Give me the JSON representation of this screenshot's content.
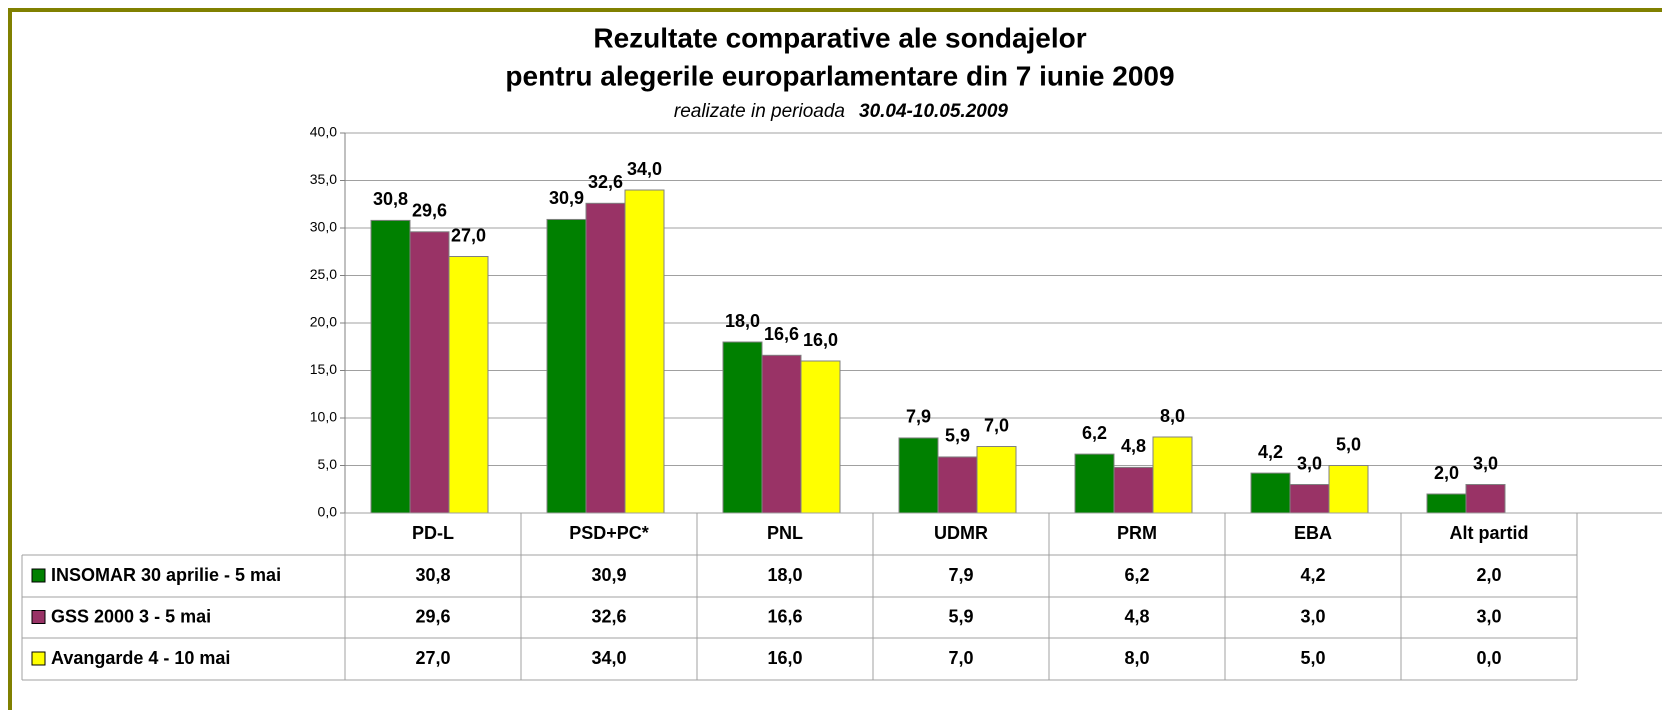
{
  "chart_data": {
    "type": "bar",
    "title": "Rezultate comparative ale sondajelor",
    "title_line2": "pentru alegerile europarlamentare din 7 iunie 2009",
    "subtitle": "realizate in perioada",
    "subtitle_date": "30.04-10.05.2009",
    "categories": [
      "PD-L",
      "PSD+PC*",
      "PNL",
      "UDMR",
      "PRM",
      "EBA",
      "Alt partid"
    ],
    "series": [
      {
        "name": "INSOMAR 30 aprilie - 5 mai",
        "color": "#008000",
        "values": [
          30.8,
          30.9,
          18.0,
          7.9,
          6.2,
          4.2,
          2.0
        ],
        "value_labels": [
          "30,8",
          "30,9",
          "18,0",
          "7,9",
          "6,2",
          "4,2",
          "2,0"
        ]
      },
      {
        "name": "GSS 2000 3 - 5 mai",
        "color": "#993366",
        "values": [
          29.6,
          32.6,
          16.6,
          5.9,
          4.8,
          3.0,
          3.0
        ],
        "value_labels": [
          "29,6",
          "32,6",
          "16,6",
          "5,9",
          "4,8",
          "3,0",
          "3,0"
        ]
      },
      {
        "name": "Avangarde 4 - 10 mai",
        "color": "#ffff00",
        "values": [
          27.0,
          34.0,
          16.0,
          7.0,
          8.0,
          5.0,
          0.0
        ],
        "value_labels": [
          "27,0",
          "34,0",
          "16,0",
          "7,0",
          "8,0",
          "5,0",
          "0,0"
        ]
      }
    ],
    "ylim": [
      0,
      40
    ],
    "yticks": [
      {
        "value": 0,
        "label": "0,0"
      },
      {
        "value": 5,
        "label": "5,0"
      },
      {
        "value": 10,
        "label": "10,0"
      },
      {
        "value": 15,
        "label": "15,0"
      },
      {
        "value": 20,
        "label": "20,0"
      },
      {
        "value": 25,
        "label": "25,0"
      },
      {
        "value": 30,
        "label": "30,0"
      },
      {
        "value": 35,
        "label": "35,0"
      },
      {
        "value": 40,
        "label": "40,0"
      }
    ],
    "grid": true,
    "data_table": true
  }
}
